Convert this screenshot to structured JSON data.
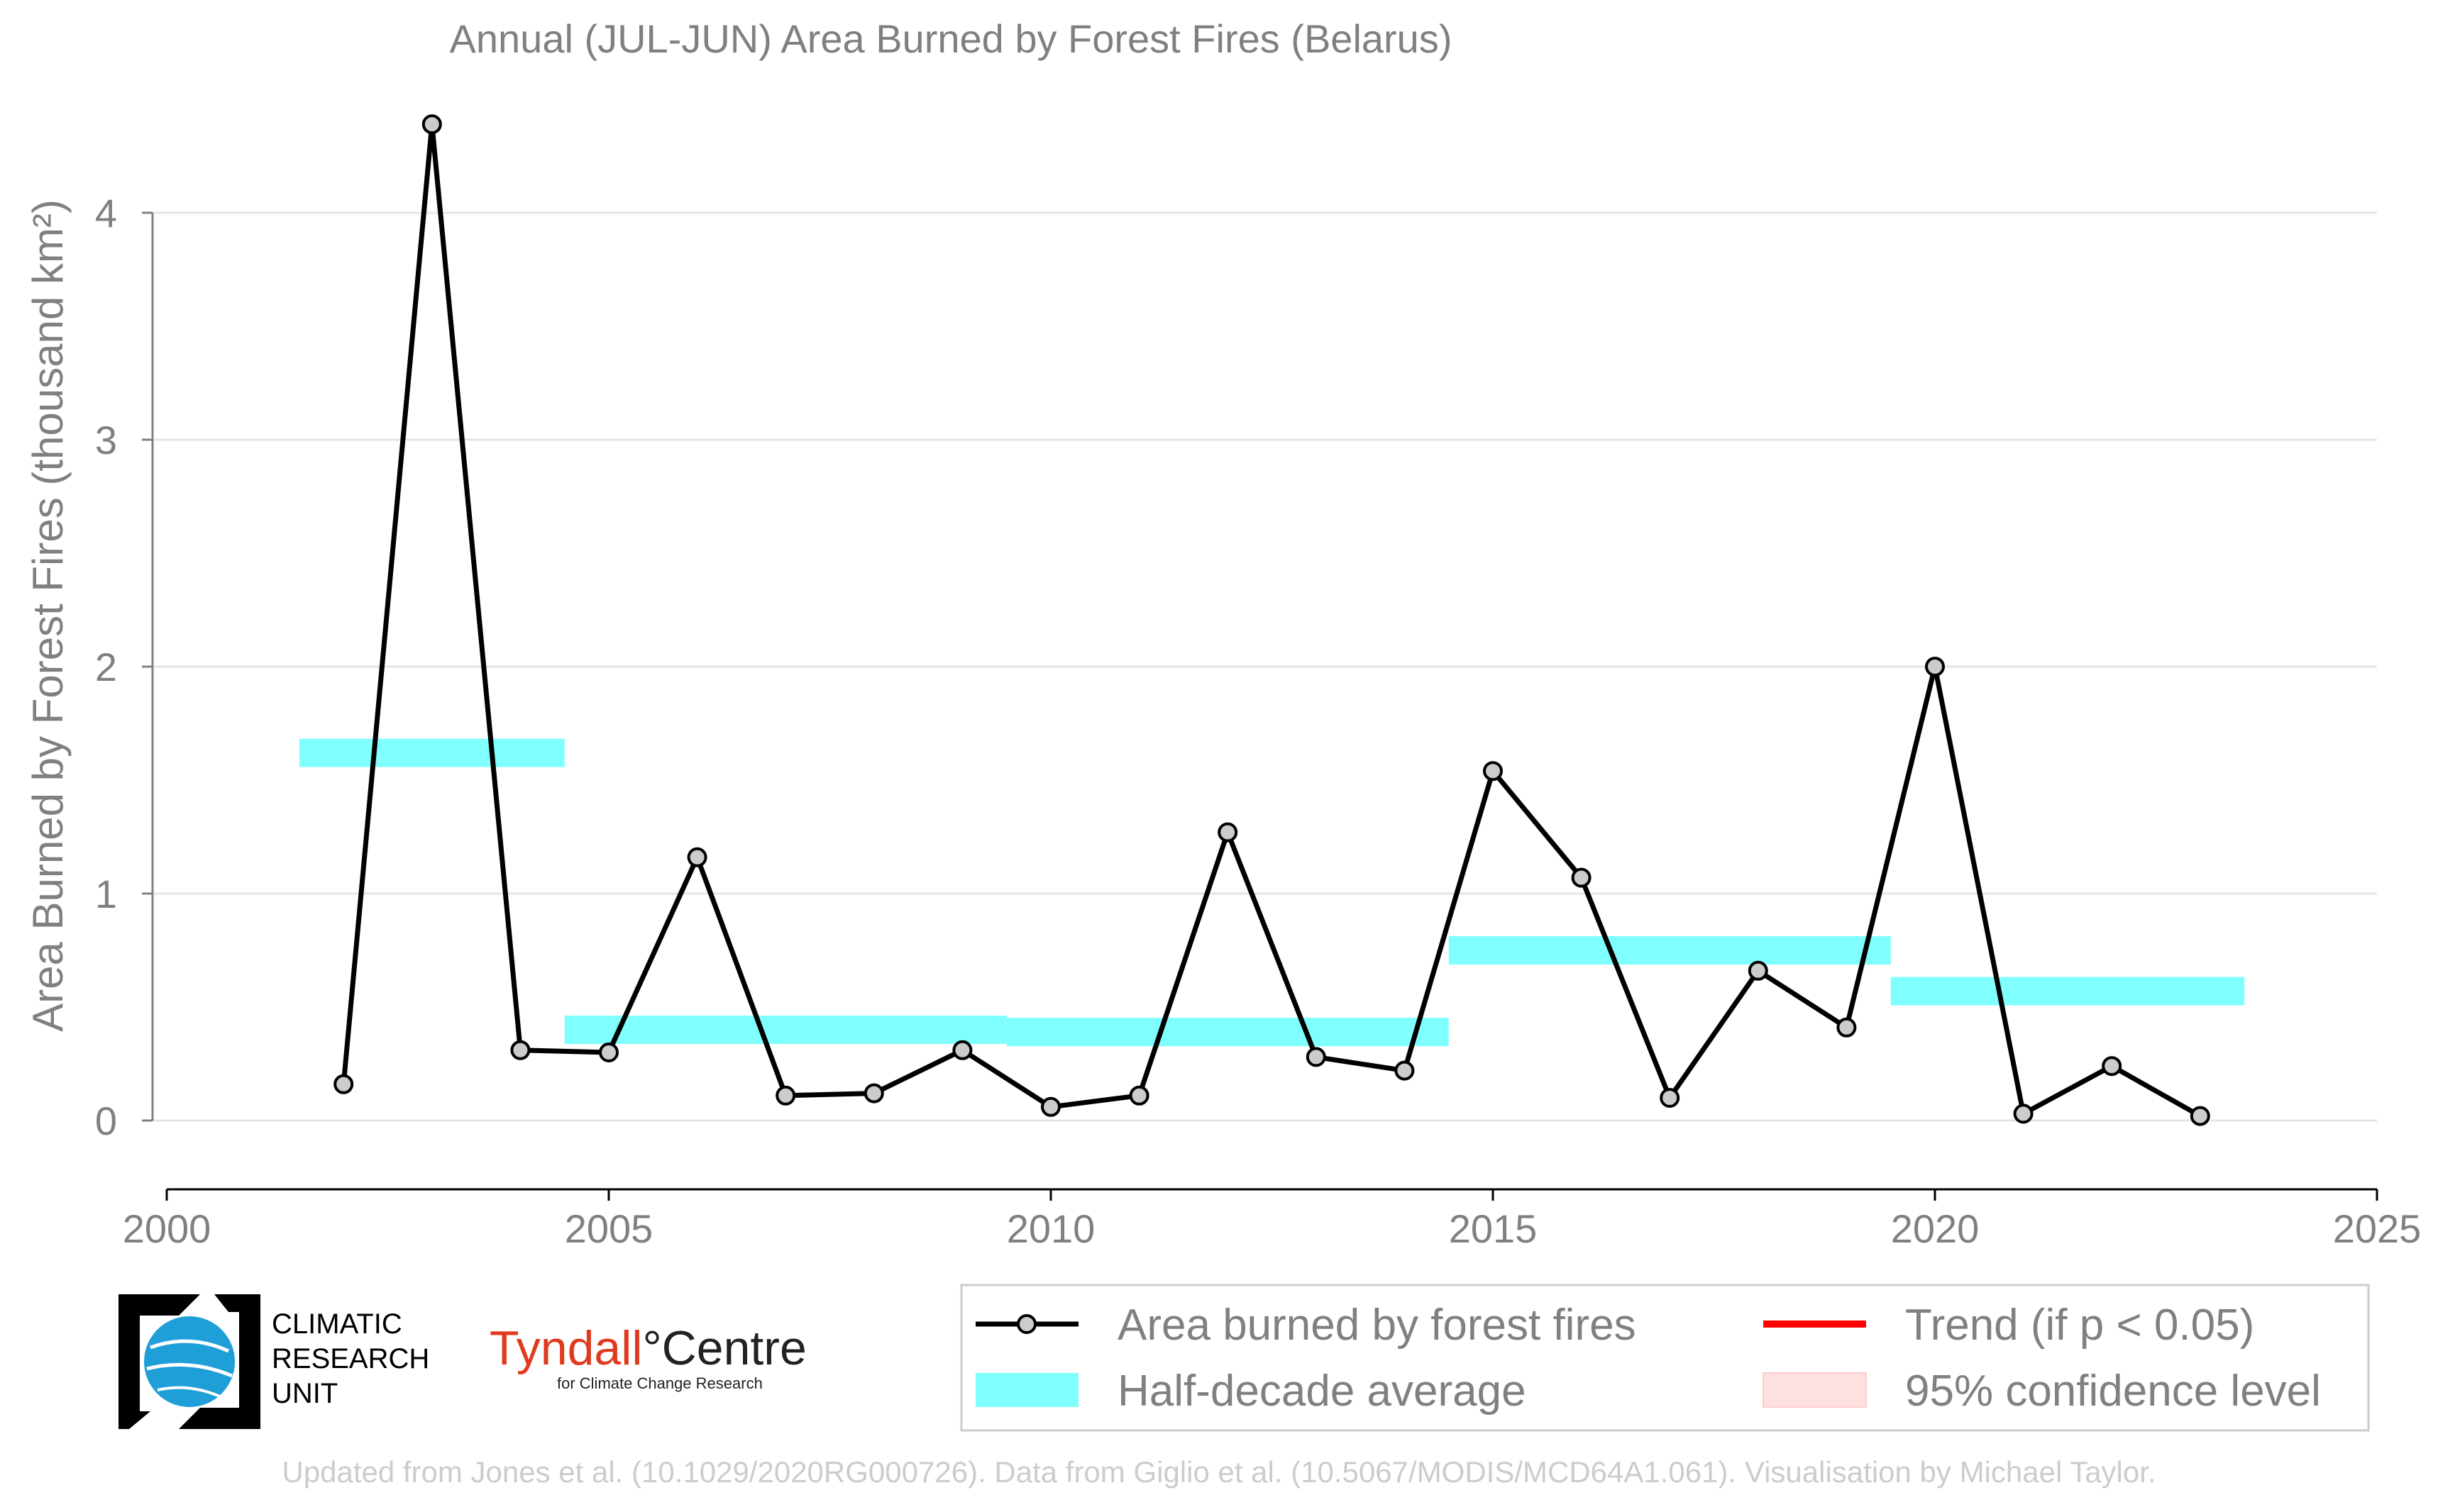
{
  "chart_data": {
    "type": "line",
    "title": "Annual (JUL-JUN) Area Burned by Forest Fires (Belarus)",
    "ylabel": "Area Burned by Forest Fires (thousand km²)",
    "xlabel": "",
    "xlim": [
      2000,
      2025
    ],
    "ylim": [
      -0.3,
      4.45
    ],
    "xticks": [
      2000,
      2005,
      2010,
      2015,
      2020,
      2025
    ],
    "yticks": [
      0,
      1,
      2,
      3,
      4
    ],
    "grid": "horizontal",
    "series": [
      {
        "name": "Area burned by forest fires",
        "color": "#000000",
        "marker_fill": "#cccccc",
        "x": [
          2002,
          2003,
          2004,
          2005,
          2006,
          2007,
          2008,
          2009,
          2010,
          2011,
          2012,
          2013,
          2014,
          2015,
          2016,
          2017,
          2018,
          2019,
          2020,
          2021,
          2022,
          2023
        ],
        "y": [
          0.16,
          4.39,
          0.31,
          0.3,
          1.16,
          0.11,
          0.12,
          0.31,
          0.06,
          0.11,
          1.27,
          0.28,
          0.22,
          1.54,
          1.07,
          0.1,
          0.66,
          0.41,
          2.0,
          0.03,
          0.24,
          0.02
        ]
      }
    ],
    "half_decade_average": {
      "name": "Half-decade average",
      "color": "#80ffff",
      "segments": [
        {
          "x_start": 2001.5,
          "x_end": 2004.5,
          "y": 1.62
        },
        {
          "x_start": 2004.5,
          "x_end": 2009.5,
          "y": 0.4
        },
        {
          "x_start": 2009.5,
          "x_end": 2014.5,
          "y": 0.39
        },
        {
          "x_start": 2014.5,
          "x_end": 2019.5,
          "y": 0.75
        },
        {
          "x_start": 2019.5,
          "x_end": 2023.5,
          "y": 0.57
        }
      ]
    },
    "legend": {
      "position": "bottom-right",
      "items": [
        {
          "label": "Area burned by forest fires",
          "kind": "line-marker",
          "color": "#000000"
        },
        {
          "label": "Trend (if p < 0.05)",
          "kind": "line",
          "color": "#ff0000"
        },
        {
          "label": "Half-decade average",
          "kind": "band",
          "color": "#80ffff"
        },
        {
          "label": "95% confidence level",
          "kind": "band",
          "color": "#ffe0e0"
        }
      ]
    }
  },
  "logos": {
    "cru_lines": [
      "CLIMATIC",
      "RESEARCH",
      "UNIT"
    ],
    "tyndall_main": "Tyndall",
    "tyndall_degree": "°",
    "tyndall_centre": "Centre",
    "tyndall_sub": "for Climate Change Research"
  },
  "footer": "Updated from Jones et al. (10.1029/2020RG000726). Data from Giglio et al. (10.5067/MODIS/MCD64A1.061). Visualisation by Michael Taylor."
}
